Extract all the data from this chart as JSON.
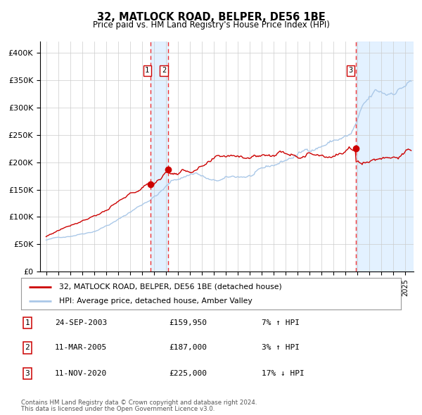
{
  "title": "32, MATLOCK ROAD, BELPER, DE56 1BE",
  "subtitle": "Price paid vs. HM Land Registry's House Price Index (HPI)",
  "legend_red": "32, MATLOCK ROAD, BELPER, DE56 1BE (detached house)",
  "legend_blue": "HPI: Average price, detached house, Amber Valley",
  "footer1": "Contains HM Land Registry data © Crown copyright and database right 2024.",
  "footer2": "This data is licensed under the Open Government Licence v3.0.",
  "transactions": [
    {
      "num": 1,
      "date": "24-SEP-2003",
      "price": 159950,
      "pct": "7%",
      "dir": "↑"
    },
    {
      "num": 2,
      "date": "11-MAR-2005",
      "price": 187000,
      "pct": "3%",
      "dir": "↑"
    },
    {
      "num": 3,
      "date": "11-NOV-2020",
      "price": 225000,
      "pct": "17%",
      "dir": "↓"
    }
  ],
  "sale_dates_decimal": [
    2003.73,
    2005.19,
    2020.86
  ],
  "sale_prices": [
    159950,
    187000,
    225000
  ],
  "highlight_ranges": [
    [
      2003.73,
      2005.19
    ],
    [
      2020.86,
      2025.7
    ]
  ],
  "ylim": [
    0,
    420000
  ],
  "xlim_start": 1994.5,
  "xlim_end": 2025.7,
  "yticks": [
    0,
    50000,
    100000,
    150000,
    200000,
    250000,
    300000,
    350000,
    400000
  ],
  "ytick_labels": [
    "£0",
    "£50K",
    "£100K",
    "£150K",
    "£200K",
    "£250K",
    "£300K",
    "£350K",
    "£400K"
  ],
  "xticks": [
    1995,
    1996,
    1997,
    1998,
    1999,
    2000,
    2001,
    2002,
    2003,
    2004,
    2005,
    2006,
    2007,
    2008,
    2009,
    2010,
    2011,
    2012,
    2013,
    2014,
    2015,
    2016,
    2017,
    2018,
    2019,
    2020,
    2021,
    2022,
    2023,
    2024,
    2025
  ],
  "red_color": "#cc0000",
  "blue_color": "#aac8e8",
  "grid_color": "#cccccc",
  "highlight_color": "#ddeeff",
  "dashed_color": "#ee3333",
  "bg_color": "#ffffff"
}
